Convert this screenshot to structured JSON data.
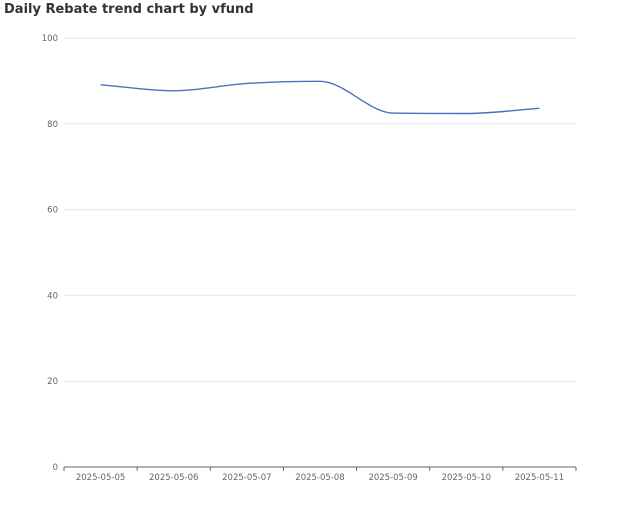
{
  "chart_data": {
    "type": "line",
    "title": "Daily Rebate trend chart by vfund",
    "xlabel": "",
    "ylabel": "",
    "categories": [
      "2025-05-05",
      "2025-05-06",
      "2025-05-07",
      "2025-05-08",
      "2025-05-09",
      "2025-05-10",
      "2025-05-11"
    ],
    "series": [
      {
        "values": [
          89.1,
          87.7,
          89.4,
          89.9,
          82.5,
          82.4,
          83.6
        ]
      }
    ],
    "ylim": [
      0,
      100
    ],
    "yticks": [
      "0",
      "20",
      "40",
      "60",
      "80",
      "100"
    ],
    "grid": true,
    "legend": "none",
    "colors": {
      "line": "#4e6fbd",
      "grid": "#e6e6e6",
      "axis": "#666666"
    }
  }
}
